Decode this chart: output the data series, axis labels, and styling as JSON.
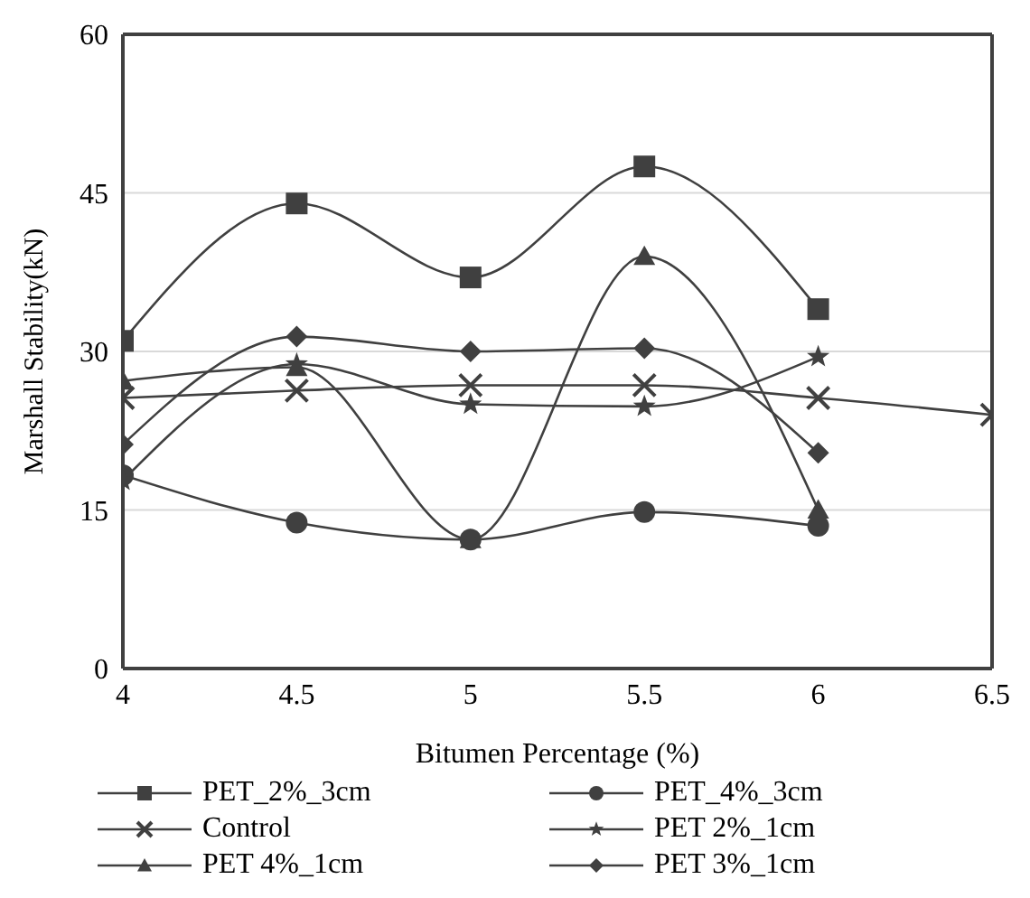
{
  "chart_data": {
    "type": "line",
    "xlabel": "Bitumen Percentage (%)",
    "ylabel": "Marshall Stability(kN)",
    "x": [
      4,
      4.5,
      5,
      5.5,
      6,
      6.5
    ],
    "xlim": [
      4,
      6.5
    ],
    "xticks": [
      4,
      4.5,
      5,
      5.5,
      6,
      6.5
    ],
    "ylim": [
      0,
      60
    ],
    "yticks": [
      0,
      15,
      30,
      45,
      60
    ],
    "grid": "y",
    "legend": "bottom",
    "line_style": "solid",
    "series": [
      {
        "name": "PET_2%_3cm",
        "color": "#404040",
        "marker": "square",
        "values": [
          31,
          44,
          37,
          47.5,
          34,
          null
        ]
      },
      {
        "name": "PET_4%_3cm",
        "color": "#404040",
        "marker": "circle",
        "values": [
          18.3,
          13.8,
          12.2,
          14.8,
          13.5,
          null
        ]
      },
      {
        "name": "Control",
        "color": "#404040",
        "marker": "cross",
        "values": [
          25.6,
          26.3,
          26.8,
          26.8,
          25.6,
          24
        ]
      },
      {
        "name": "PET 2%_1cm",
        "color": "#404040",
        "marker": "star",
        "values": [
          17.8,
          28.8,
          25,
          24.8,
          29.5,
          null
        ]
      },
      {
        "name": "PET 4%_1cm",
        "color": "#404040",
        "marker": "triangle",
        "values": [
          27.2,
          28.5,
          12.2,
          39,
          15,
          null
        ]
      },
      {
        "name": "PET 3%_1cm",
        "color": "#404040",
        "marker": "diamond",
        "values": [
          21.2,
          31.4,
          30,
          30.3,
          20.4,
          null
        ]
      }
    ]
  }
}
